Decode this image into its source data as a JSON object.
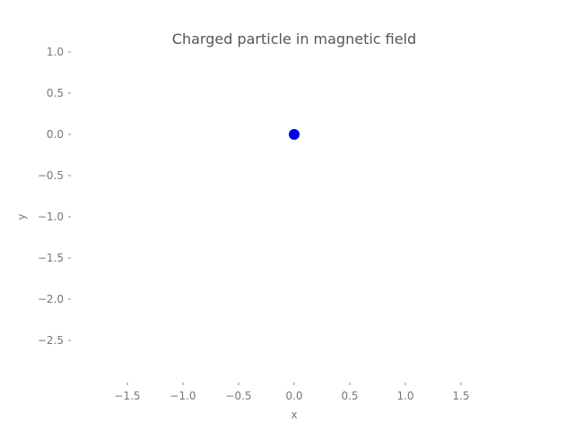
{
  "chart_data": {
    "type": "scatter",
    "title": "Charged particle in magnetic field",
    "xlabel": "x",
    "ylabel": "y",
    "xlim": [
      -2.0,
      2.0
    ],
    "ylim": [
      -3.0,
      1.0
    ],
    "xticks": [
      -1.5,
      -1.0,
      -0.5,
      0.0,
      0.5,
      1.0,
      1.5
    ],
    "xtick_labels": [
      "−1.5",
      "−1.0",
      "−0.5",
      "0.0",
      "0.5",
      "1.0",
      "1.5"
    ],
    "yticks": [
      1.0,
      0.5,
      0.0,
      -0.5,
      -1.0,
      -1.5,
      -2.0,
      -2.5
    ],
    "ytick_labels": [
      "1.0",
      "0.5",
      "0.0",
      "−0.5",
      "−1.0",
      "−1.5",
      "−2.0",
      "−2.5"
    ],
    "grid": false,
    "series": [
      {
        "color": "#0000ee",
        "points": [
          {
            "x": 0.0,
            "y": 0.0
          }
        ]
      }
    ]
  }
}
